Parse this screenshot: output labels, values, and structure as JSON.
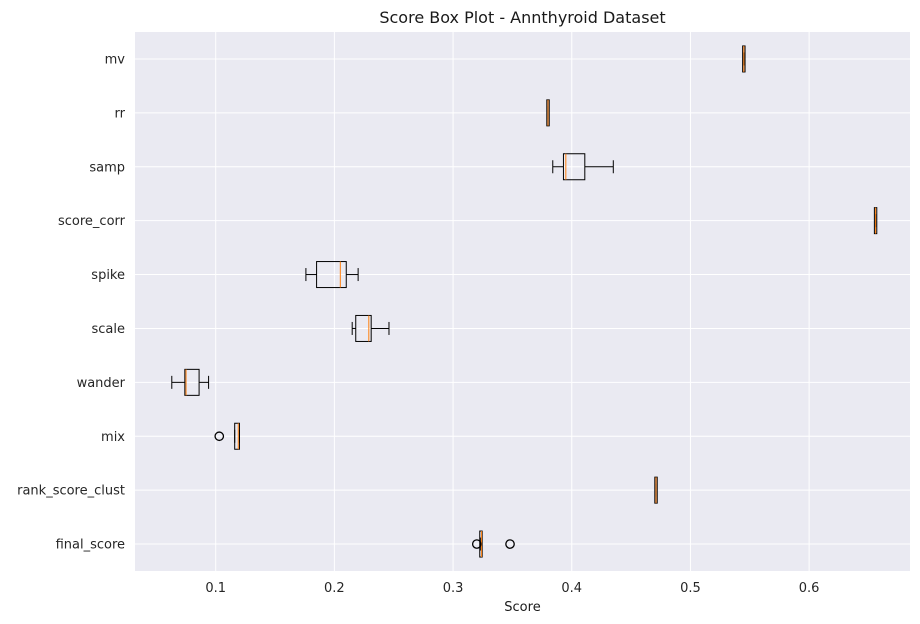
{
  "chart_data": {
    "type": "boxplot",
    "orientation": "horizontal",
    "title": "Score Box Plot - Annthyroid Dataset",
    "xlabel": "Score",
    "ylabel": "",
    "xlim": [
      0.032,
      0.685
    ],
    "xticks": [
      0.1,
      0.2,
      0.3,
      0.4,
      0.5,
      0.6
    ],
    "xtick_labels": [
      "0.1",
      "0.2",
      "0.3",
      "0.4",
      "0.5",
      "0.6"
    ],
    "grid": true,
    "colors": {
      "background": "#eaeaf2",
      "grid": "#ffffff",
      "box": "#000000",
      "median": "#ff7f0e"
    },
    "categories": [
      "mv",
      "rr",
      "samp",
      "score_corr",
      "spike",
      "scale",
      "wander",
      "mix",
      "rank_score_clust",
      "final_score"
    ],
    "boxes": [
      {
        "label": "mv",
        "whislo": 0.545,
        "q1": 0.545,
        "med": 0.545,
        "q3": 0.545,
        "whishi": 0.545,
        "fliers": []
      },
      {
        "label": "rr",
        "whislo": 0.38,
        "q1": 0.38,
        "med": 0.38,
        "q3": 0.38,
        "whishi": 0.38,
        "fliers": []
      },
      {
        "label": "samp",
        "whislo": 0.384,
        "q1": 0.393,
        "med": 0.395,
        "q3": 0.411,
        "whishi": 0.435,
        "fliers": []
      },
      {
        "label": "score_corr",
        "whislo": 0.656,
        "q1": 0.656,
        "med": 0.656,
        "q3": 0.656,
        "whishi": 0.656,
        "fliers": []
      },
      {
        "label": "spike",
        "whislo": 0.176,
        "q1": 0.185,
        "med": 0.205,
        "q3": 0.21,
        "whishi": 0.22,
        "fliers": []
      },
      {
        "label": "scale",
        "whislo": 0.215,
        "q1": 0.218,
        "med": 0.229,
        "q3": 0.231,
        "whishi": 0.246,
        "fliers": []
      },
      {
        "label": "wander",
        "whislo": 0.063,
        "q1": 0.074,
        "med": 0.075,
        "q3": 0.086,
        "whishi": 0.094,
        "fliers": []
      },
      {
        "label": "mix",
        "whislo": 0.116,
        "q1": 0.116,
        "med": 0.119,
        "q3": 0.12,
        "whishi": 0.12,
        "fliers": [
          0.103
        ]
      },
      {
        "label": "rank_score_clust",
        "whislo": 0.471,
        "q1": 0.471,
        "med": 0.471,
        "q3": 0.471,
        "whishi": 0.471,
        "fliers": []
      },
      {
        "label": "final_score",
        "whislo": 0.323,
        "q1": 0.323,
        "med": 0.324,
        "q3": 0.324,
        "whishi": 0.324,
        "fliers": [
          0.32,
          0.348
        ]
      }
    ]
  }
}
